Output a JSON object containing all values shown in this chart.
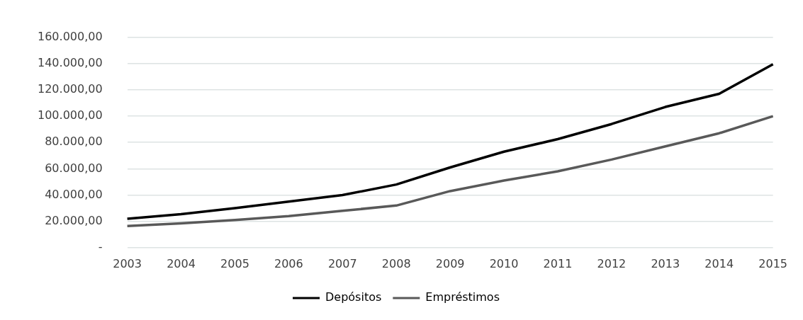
{
  "chart_data": {
    "type": "line",
    "categories": [
      "2003",
      "2004",
      "2005",
      "2006",
      "2007",
      "2008",
      "2009",
      "2010",
      "2011",
      "2012",
      "2013",
      "2014",
      "2015"
    ],
    "series": [
      {
        "name": "Depósitos",
        "color": "#000000",
        "values": [
          22000,
          25500,
          30000,
          35000,
          40000,
          48000,
          61000,
          73000,
          82500,
          94000,
          107000,
          117000,
          139500
        ]
      },
      {
        "name": "Empréstimos",
        "color": "#595959",
        "values": [
          16500,
          18500,
          21000,
          24000,
          28000,
          32000,
          43000,
          51000,
          58000,
          67000,
          77000,
          87000,
          100000
        ]
      }
    ],
    "ylim": [
      0,
      160000
    ],
    "yticks": [
      {
        "value": 0,
        "label": "-"
      },
      {
        "value": 20000,
        "label": "20.000,00"
      },
      {
        "value": 40000,
        "label": "40.000,00"
      },
      {
        "value": 60000,
        "label": "60.000,00"
      },
      {
        "value": 80000,
        "label": "80.000,00"
      },
      {
        "value": 100000,
        "label": "100.000,00"
      },
      {
        "value": 120000,
        "label": "120.000,00"
      },
      {
        "value": 140000,
        "label": "140.000,00"
      },
      {
        "value": 160000,
        "label": "160.000,00"
      }
    ],
    "grid": "y",
    "legend": "bottom",
    "marker": "none",
    "line_style": "solid"
  }
}
